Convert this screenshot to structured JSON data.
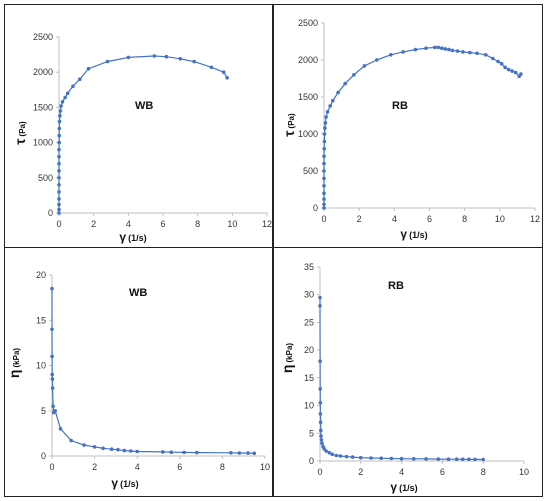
{
  "colors": {
    "series": "#4472C4",
    "axis": "#bfbfbf"
  },
  "chart_data": [
    {
      "type": "scatter",
      "annotation": "WB",
      "ylabel": "τ",
      "ylabel_unit": "(Pa)",
      "xlabel": "γ",
      "xlabel_unit": "(1/s)",
      "xlim": [
        0,
        12
      ],
      "ylim": [
        0,
        2500
      ],
      "xticks": [
        "0",
        "2",
        "4",
        "6",
        "8",
        "10",
        "12"
      ],
      "yticks": [
        "0",
        "500",
        "1000",
        "1500",
        "2000",
        "2500"
      ],
      "series": [
        {
          "x": [
            0,
            0,
            0,
            0,
            0,
            0,
            0,
            0,
            0,
            0,
            0,
            0.01,
            0.01,
            0.02,
            0.03,
            0.05,
            0.08,
            0.12,
            0.2,
            0.35,
            0.5,
            0.8,
            1.2,
            1.7,
            2.8,
            4.0,
            5.5,
            6.2,
            7.0,
            7.8,
            8.8,
            9.5,
            9.7
          ],
          "y": [
            0,
            50,
            120,
            200,
            300,
            400,
            500,
            600,
            700,
            800,
            900,
            1000,
            1100,
            1200,
            1300,
            1380,
            1450,
            1520,
            1580,
            1640,
            1700,
            1800,
            1900,
            2050,
            2150,
            2210,
            2230,
            2220,
            2190,
            2150,
            2070,
            2000,
            1920
          ]
        }
      ]
    },
    {
      "type": "scatter",
      "annotation": "RB",
      "ylabel": "τ",
      "ylabel_unit": "(Pa)",
      "xlabel": "γ",
      "xlabel_unit": "(1/s)",
      "xlim": [
        0,
        12
      ],
      "ylim": [
        0,
        2500
      ],
      "xticks": [
        "0",
        "2",
        "4",
        "6",
        "8",
        "10",
        "12"
      ],
      "yticks": [
        "0",
        "500",
        "1000",
        "1500",
        "2000",
        "2500"
      ],
      "series": [
        {
          "x": [
            0,
            0,
            0,
            0,
            0,
            0,
            0,
            0,
            0,
            0.01,
            0.02,
            0.03,
            0.05,
            0.08,
            0.12,
            0.2,
            0.35,
            0.5,
            0.8,
            1.2,
            1.7,
            2.3,
            3.0,
            3.8,
            4.5,
            5.2,
            5.8,
            6.3,
            6.5,
            6.7,
            6.9,
            7.1,
            7.3,
            7.6,
            7.9,
            8.3,
            8.7,
            9.2,
            9.6,
            9.9,
            10.1,
            10.3,
            10.5,
            10.7,
            10.9,
            11.1,
            11.2
          ],
          "y": [
            0,
            50,
            120,
            200,
            300,
            400,
            500,
            600,
            700,
            800,
            900,
            1000,
            1080,
            1150,
            1230,
            1300,
            1380,
            1450,
            1560,
            1680,
            1800,
            1920,
            2000,
            2070,
            2110,
            2140,
            2160,
            2170,
            2170,
            2160,
            2150,
            2140,
            2130,
            2120,
            2110,
            2100,
            2090,
            2070,
            2020,
            1980,
            1950,
            1900,
            1870,
            1850,
            1830,
            1780,
            1810
          ]
        }
      ]
    },
    {
      "type": "scatter",
      "annotation": "WB",
      "ylabel": "η",
      "ylabel_unit": "(kPa)",
      "xlabel": "γ",
      "xlabel_unit": "(1/s)",
      "xlim": [
        0,
        10
      ],
      "ylim": [
        0,
        20
      ],
      "xticks": [
        "0",
        "2",
        "4",
        "6",
        "8",
        "10"
      ],
      "yticks": [
        "0",
        "5",
        "10",
        "15",
        "20"
      ],
      "series": [
        {
          "x": [
            0.0,
            0.0,
            0.005,
            0.01,
            0.02,
            0.03,
            0.05,
            0.08,
            0.15,
            0.4,
            0.9,
            1.5,
            2.0,
            2.4,
            2.8,
            3.1,
            3.4,
            3.7,
            4.0,
            5.2,
            5.6,
            6.2,
            6.8,
            8.4,
            8.8,
            9.2,
            9.5
          ],
          "y": [
            18.5,
            14.0,
            11.0,
            9.0,
            8.5,
            7.5,
            5.5,
            4.8,
            5.0,
            3.0,
            1.7,
            1.2,
            1.0,
            0.85,
            0.75,
            0.7,
            0.6,
            0.55,
            0.5,
            0.45,
            0.42,
            0.4,
            0.38,
            0.35,
            0.33,
            0.32,
            0.3
          ]
        }
      ]
    },
    {
      "type": "scatter",
      "annotation": "RB",
      "ylabel": "η",
      "ylabel_unit": "(kPa)",
      "xlabel": "γ",
      "xlabel_unit": "(1/s)",
      "xlim": [
        0,
        10
      ],
      "ylim": [
        0,
        35
      ],
      "xticks": [
        "0",
        "2",
        "4",
        "6",
        "8",
        "10"
      ],
      "yticks": [
        "0",
        "5",
        "10",
        "15",
        "20",
        "25",
        "30",
        "35"
      ],
      "series": [
        {
          "x": [
            0.0,
            0.0,
            0.005,
            0.01,
            0.015,
            0.02,
            0.03,
            0.04,
            0.05,
            0.07,
            0.1,
            0.15,
            0.2,
            0.3,
            0.45,
            0.6,
            0.8,
            1.0,
            1.3,
            1.6,
            2.0,
            2.5,
            3.0,
            3.5,
            4.0,
            4.6,
            5.2,
            5.8,
            6.3,
            6.7,
            7.0,
            7.3,
            7.6,
            8.0
          ],
          "y": [
            29.5,
            28.0,
            18.0,
            13.0,
            10.5,
            8.5,
            7.0,
            5.5,
            4.5,
            3.8,
            3.2,
            2.6,
            2.2,
            1.8,
            1.5,
            1.2,
            1.0,
            0.9,
            0.8,
            0.7,
            0.6,
            0.55,
            0.5,
            0.45,
            0.42,
            0.4,
            0.37,
            0.35,
            0.33,
            0.32,
            0.3,
            0.3,
            0.28,
            0.27
          ]
        }
      ]
    }
  ]
}
